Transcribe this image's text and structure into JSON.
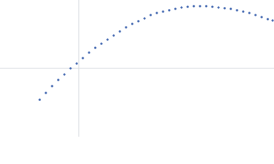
{
  "chart_data": {
    "type": "scatter",
    "x": [
      -57,
      -48,
      -39,
      -30,
      -21,
      -12,
      -3,
      6,
      15,
      24,
      33,
      42,
      51,
      60,
      69,
      78,
      87,
      96,
      105,
      114,
      123,
      132,
      141,
      150,
      159,
      168,
      177,
      186,
      195,
      204,
      213,
      222,
      231,
      240,
      249,
      258,
      267,
      276,
      283
    ],
    "series": [
      {
        "color": "#3d63ae",
        "values": [
          -46,
          -36,
          -26,
          -17,
          -9,
          0,
          7,
          15,
          23,
          30,
          36,
          42,
          48,
          54,
          60,
          65,
          69,
          73,
          78,
          81,
          83,
          85,
          87,
          89,
          90,
          91,
          91,
          91,
          90,
          89,
          88,
          87,
          85,
          83,
          81,
          78,
          75,
          72,
          70
        ]
      }
    ],
    "xlim": [
      -115,
      285
    ],
    "ylim": [
      -100,
      100
    ],
    "xticks": [
      0
    ],
    "yticks": [
      0
    ],
    "tick_labels": false,
    "grid": true,
    "grid_color": "#d3d7de"
  }
}
